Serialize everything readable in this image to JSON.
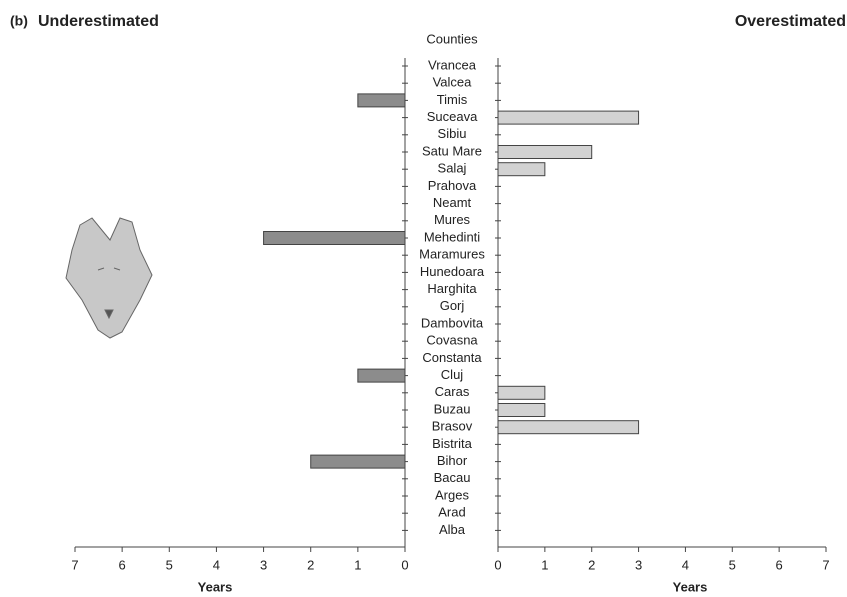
{
  "chart_data": [
    {
      "type": "bar",
      "orientation": "horizontal",
      "panel_label": "(b)",
      "title": "Underestimated",
      "xlabel": "Years",
      "category_label": "Counties",
      "categories": [
        "Vrancea",
        "Valcea",
        "Timis",
        "Suceava",
        "Sibiu",
        "Satu Mare",
        "Salaj",
        "Prahova",
        "Neamt",
        "Mures",
        "Mehedinti",
        "Maramures",
        "Hunedoara",
        "Harghita",
        "Gorj",
        "Dambovita",
        "Covasna",
        "Constanta",
        "Cluj",
        "Caras",
        "Buzau",
        "Brasov",
        "Bistrita",
        "Bihor",
        "Bacau",
        "Arges",
        "Arad",
        "Alba"
      ],
      "values": [
        0,
        0,
        1,
        0,
        0,
        0,
        0,
        0,
        0,
        0,
        3,
        0,
        0,
        0,
        0,
        0,
        0,
        0,
        1,
        0,
        0,
        0,
        0,
        2,
        0,
        0,
        0,
        0
      ],
      "color": "#8c8c8c",
      "xlim": [
        0,
        7
      ],
      "xticks": [
        0,
        1,
        2,
        3,
        4,
        5,
        6,
        7
      ],
      "x_reversed": true
    },
    {
      "type": "bar",
      "orientation": "horizontal",
      "title": "Overestimated",
      "xlabel": "Years",
      "values": [
        0,
        0,
        0,
        3,
        0,
        2,
        1,
        0,
        0,
        0,
        0,
        0,
        0,
        0,
        0,
        0,
        0,
        0,
        0,
        1,
        1,
        3,
        0,
        0,
        0,
        0,
        0,
        0
      ],
      "color": "#d2d2d2",
      "xlim": [
        0,
        7
      ],
      "xticks": [
        0,
        1,
        2,
        3,
        4,
        5,
        6,
        7
      ],
      "x_reversed": false
    }
  ]
}
